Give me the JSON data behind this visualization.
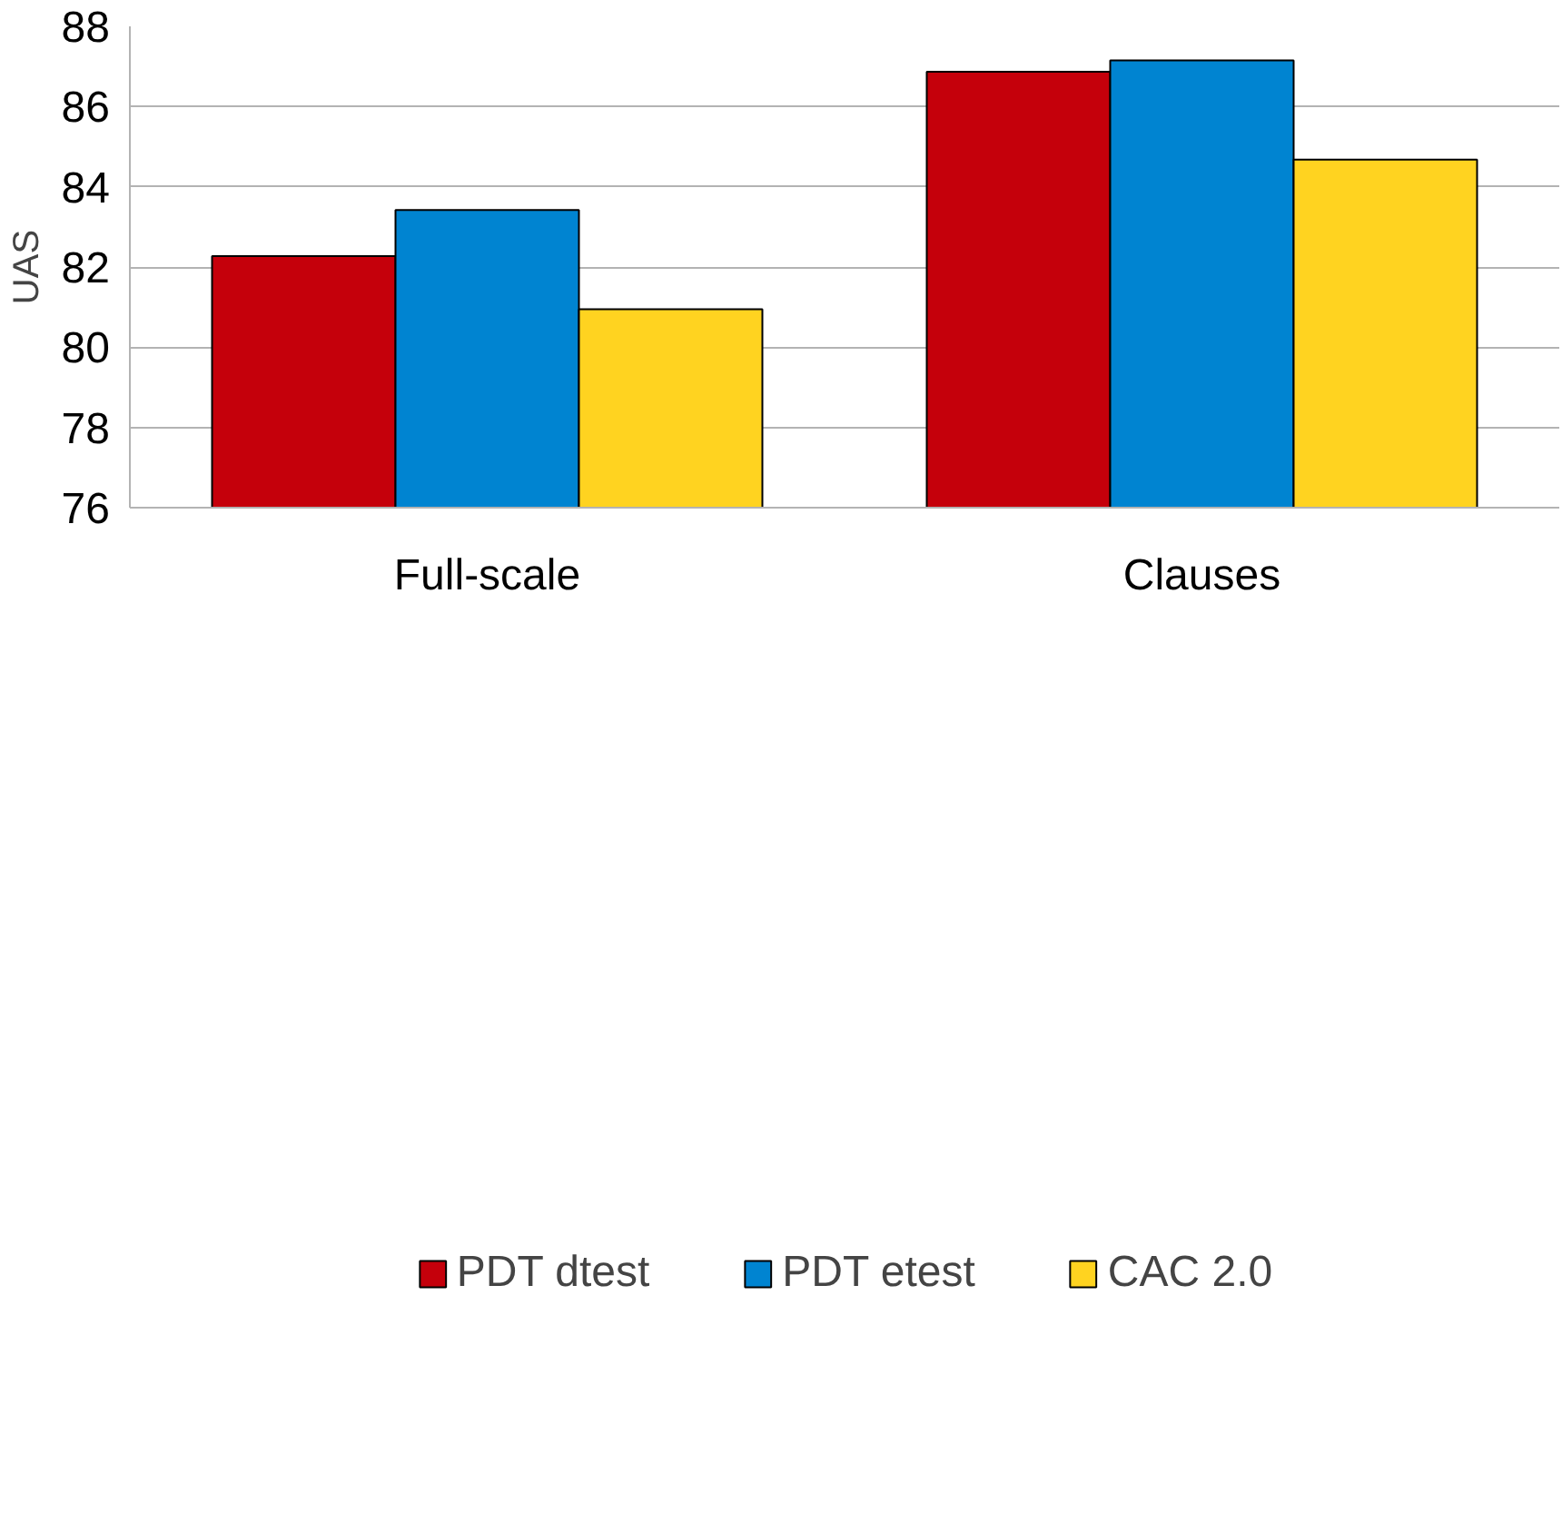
{
  "chart_data": {
    "type": "bar",
    "ylabel": "UAS",
    "categories": [
      "Full-scale",
      "Clauses"
    ],
    "series": [
      {
        "name": "PDT dtest",
        "color": "#c5000b",
        "values": [
          82.27,
          86.87
        ]
      },
      {
        "name": "PDT etest",
        "color": "#0084d1",
        "values": [
          83.42,
          87.15
        ]
      },
      {
        "name": "CAC 2.0",
        "color": "#ffd320",
        "values": [
          80.95,
          84.68
        ]
      }
    ],
    "ylim": [
      76,
      88
    ],
    "yticks": [
      76,
      78,
      80,
      82,
      84,
      86,
      88
    ],
    "grid": "y",
    "legend": "bottom"
  }
}
